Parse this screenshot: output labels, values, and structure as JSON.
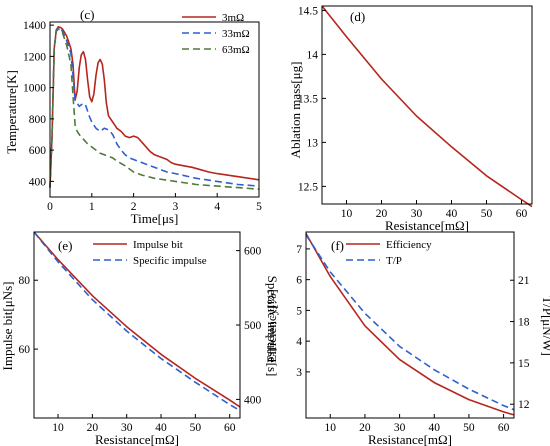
{
  "chart_data": [
    {
      "panel": "(c)",
      "type": "line",
      "xlabel": "Time[μs]",
      "ylabel": "Temperature[K]",
      "xlim": [
        0,
        5
      ],
      "ylim": [
        300,
        1420
      ],
      "xticks": [
        0,
        1,
        2,
        3,
        4,
        5
      ],
      "yticks": [
        400,
        600,
        800,
        1000,
        1200,
        1400
      ],
      "legend_position": "top-right",
      "series": [
        {
          "name": "3mΩ",
          "color": "#b5261e",
          "dash": "solid",
          "x": [
            0,
            0.05,
            0.1,
            0.15,
            0.2,
            0.25,
            0.3,
            0.4,
            0.5,
            0.55,
            0.6,
            0.65,
            0.7,
            0.75,
            0.8,
            0.85,
            0.9,
            0.95,
            1.0,
            1.05,
            1.1,
            1.15,
            1.2,
            1.25,
            1.3,
            1.35,
            1.4,
            1.45,
            1.5,
            1.55,
            1.6,
            1.7,
            1.8,
            1.9,
            2.0,
            2.1,
            2.2,
            2.3,
            2.4,
            2.5,
            2.6,
            2.7,
            2.8,
            2.9,
            3.0,
            3.2,
            3.4,
            3.6,
            3.8,
            4.0,
            4.5,
            5.0
          ],
          "y": [
            360,
            700,
            1250,
            1370,
            1390,
            1385,
            1375,
            1330,
            1250,
            1150,
            920,
            980,
            1130,
            1210,
            1230,
            1180,
            1050,
            940,
            910,
            960,
            1080,
            1160,
            1180,
            1150,
            1050,
            900,
            820,
            800,
            780,
            760,
            740,
            720,
            690,
            680,
            690,
            680,
            650,
            620,
            590,
            570,
            560,
            550,
            540,
            520,
            510,
            500,
            490,
            475,
            460,
            450,
            430,
            410
          ]
        },
        {
          "name": "33mΩ",
          "color": "#2f5fd0",
          "dash": "dashed",
          "x": [
            0,
            0.05,
            0.1,
            0.15,
            0.2,
            0.25,
            0.3,
            0.4,
            0.5,
            0.55,
            0.6,
            0.65,
            0.7,
            0.75,
            0.8,
            0.85,
            0.9,
            0.95,
            1.0,
            1.1,
            1.2,
            1.3,
            1.4,
            1.5,
            1.6,
            1.7,
            1.8,
            1.9,
            2.0,
            2.2,
            2.4,
            2.6,
            2.8,
            3.0,
            3.5,
            4.0,
            4.5,
            5.0
          ],
          "y": [
            360,
            700,
            1250,
            1370,
            1385,
            1380,
            1360,
            1300,
            1220,
            1080,
            920,
            900,
            880,
            890,
            900,
            890,
            850,
            810,
            780,
            740,
            720,
            740,
            730,
            700,
            640,
            600,
            570,
            550,
            540,
            520,
            500,
            480,
            460,
            450,
            420,
            400,
            380,
            370
          ]
        },
        {
          "name": "63mΩ",
          "color": "#4f7a3a",
          "dash": "dashed",
          "x": [
            0,
            0.05,
            0.1,
            0.15,
            0.2,
            0.25,
            0.3,
            0.4,
            0.5,
            0.55,
            0.6,
            0.65,
            0.7,
            0.75,
            0.8,
            0.9,
            1.0,
            1.1,
            1.2,
            1.3,
            1.4,
            1.5,
            1.6,
            1.8,
            2.0,
            2.2,
            2.5,
            3.0,
            3.5,
            4.0,
            4.5,
            5.0
          ],
          "y": [
            360,
            700,
            1250,
            1360,
            1375,
            1370,
            1350,
            1270,
            1150,
            950,
            760,
            720,
            700,
            680,
            670,
            640,
            620,
            600,
            580,
            570,
            560,
            550,
            530,
            500,
            460,
            440,
            420,
            400,
            380,
            370,
            360,
            350
          ]
        }
      ]
    },
    {
      "panel": "(d)",
      "type": "line",
      "xlabel": "Resistance[mΩ]",
      "ylabel": "Ablation mass[μg]",
      "xlim": [
        3,
        63
      ],
      "ylim": [
        12.3,
        14.55
      ],
      "xticks": [
        10,
        20,
        30,
        40,
        50,
        60
      ],
      "yticks": [
        12.5,
        13,
        13.5,
        14,
        14.5
      ],
      "series": [
        {
          "name": "",
          "color": "#b5261e",
          "dash": "solid",
          "x": [
            3,
            10,
            20,
            30,
            40,
            50,
            60,
            63
          ],
          "y": [
            14.55,
            14.2,
            13.72,
            13.3,
            12.95,
            12.62,
            12.35,
            12.27
          ]
        }
      ]
    },
    {
      "panel": "(e)",
      "type": "line",
      "xlabel": "Resistance[mΩ]",
      "ylabel": "Impulse bit[μNs]",
      "ylabel_right": "Specific impulse[s]",
      "xlim": [
        3,
        63
      ],
      "ylim": [
        40,
        94
      ],
      "ylim_right": [
        375,
        625
      ],
      "xticks": [
        10,
        20,
        30,
        40,
        50,
        60
      ],
      "yticks": [
        60,
        80
      ],
      "yticks_right": [
        400,
        500,
        600
      ],
      "legend_position": "top-right",
      "series": [
        {
          "name": "Impulse bit",
          "color": "#b5261e",
          "dash": "solid",
          "axis": "left",
          "x": [
            3,
            10,
            20,
            30,
            40,
            50,
            60,
            63
          ],
          "y": [
            94,
            86,
            75.5,
            66.5,
            58.5,
            51.5,
            45.2,
            43.2
          ]
        },
        {
          "name": "Specific impulse",
          "color": "#2f5fd0",
          "dash": "dashed",
          "axis": "right",
          "x": [
            3,
            10,
            20,
            30,
            40,
            50,
            60,
            63
          ],
          "y": [
            625,
            585,
            534,
            492,
            455,
            423,
            393,
            385
          ]
        }
      ]
    },
    {
      "panel": "(f)",
      "type": "line",
      "xlabel": "Resistance[mΩ]",
      "ylabel": "Efficiency[%]",
      "ylabel_right": "T/P[μN/W]",
      "xlim": [
        3,
        63
      ],
      "ylim": [
        1.5,
        7.55
      ],
      "ylim_right": [
        11,
        24.5
      ],
      "xticks": [
        10,
        20,
        30,
        40,
        50,
        60
      ],
      "yticks": [
        3,
        4,
        5,
        6,
        7
      ],
      "yticks_right": [
        12,
        15,
        18,
        21
      ],
      "legend_position": "top-right",
      "series": [
        {
          "name": "Efficiency",
          "color": "#b5261e",
          "dash": "solid",
          "axis": "left",
          "x": [
            3,
            10,
            20,
            30,
            40,
            50,
            60,
            63
          ],
          "y": [
            7.5,
            6.1,
            4.5,
            3.4,
            2.65,
            2.1,
            1.7,
            1.6
          ]
        },
        {
          "name": "T/P",
          "color": "#2f5fd0",
          "dash": "dashed",
          "axis": "right",
          "x": [
            3,
            10,
            20,
            30,
            40,
            50,
            60,
            63
          ],
          "y": [
            24.3,
            21.6,
            18.6,
            16.2,
            14.5,
            13.1,
            11.9,
            11.6
          ]
        }
      ]
    }
  ]
}
